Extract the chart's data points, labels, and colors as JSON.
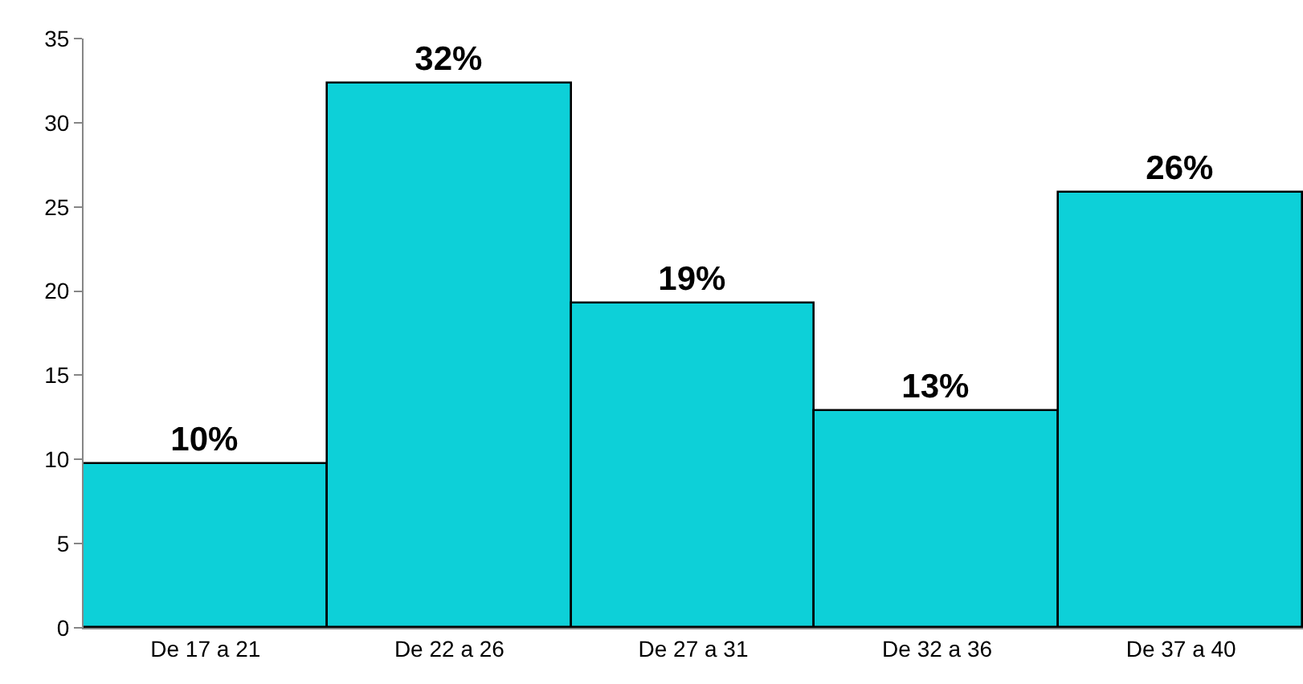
{
  "chart_data": {
    "type": "bar",
    "categories": [
      "De 17 a 21",
      "De 22 a 26",
      "De 27 a 31",
      "De 32 a 36",
      "De 37 a 40"
    ],
    "values": [
      9.7,
      32.3,
      19.3,
      12.9,
      25.8
    ],
    "value_labels": [
      "10%",
      "32%",
      "19%",
      "13%",
      "26%"
    ],
    "color": "#0dd0d8",
    "ylim": [
      0,
      35
    ],
    "yticks": [
      0,
      5,
      10,
      15,
      20,
      25,
      30,
      35
    ]
  }
}
